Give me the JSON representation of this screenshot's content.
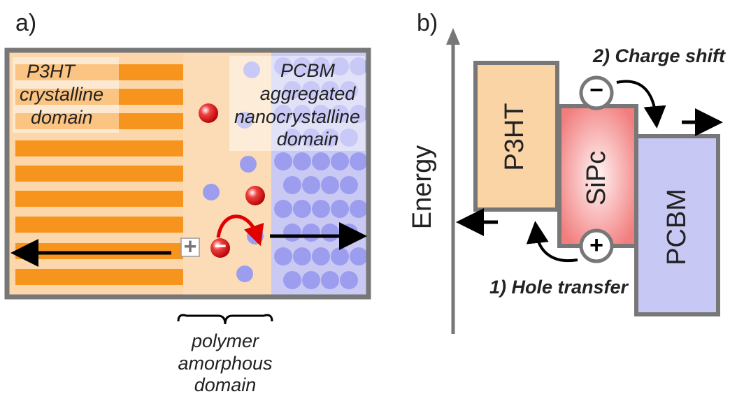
{
  "panel_a": {
    "label": "a)",
    "crystalline_label": [
      "P3HT",
      "crystalline",
      "domain"
    ],
    "pcbm_label": [
      "PCBM",
      "aggregated",
      "nanocrystalline",
      "domain"
    ],
    "amorphous_label": [
      "polymer",
      "amorphous",
      "domain"
    ],
    "plus": "+",
    "minus": "−"
  },
  "panel_b": {
    "label": "b)",
    "axis_label": "Energy",
    "boxes": {
      "p3ht": "P3HT",
      "sipc": "SiPc",
      "pcbm": "PCBM"
    },
    "step1": "1) Hole transfer",
    "step2": "2) Charge shift",
    "plus": "+",
    "minus": "−"
  }
}
